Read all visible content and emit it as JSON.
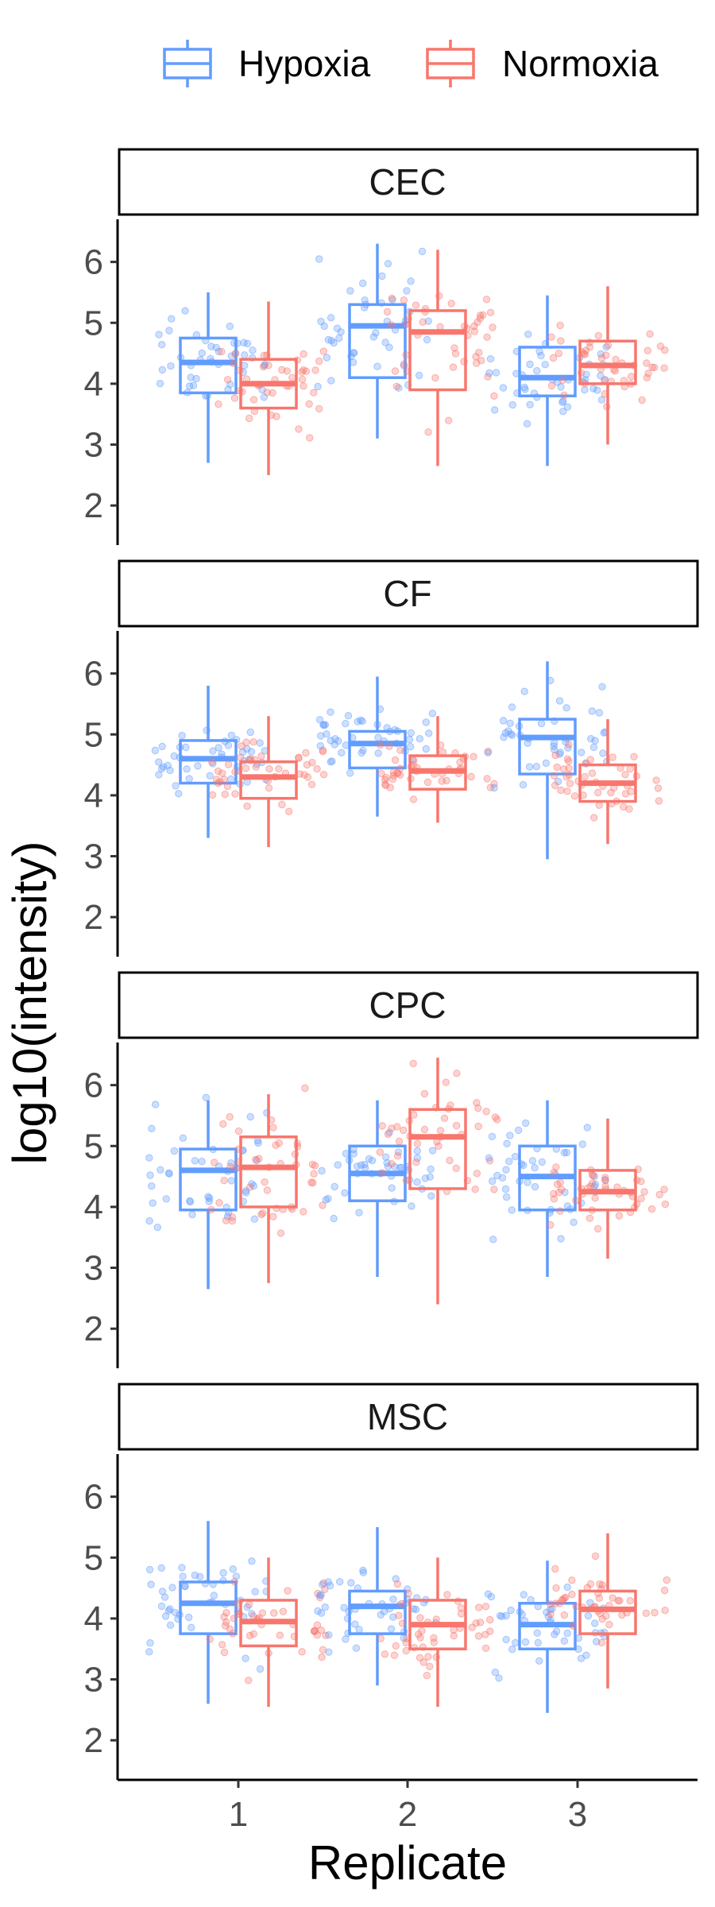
{
  "chart_data": {
    "type": "boxplot",
    "xlabel": "Replicate",
    "ylabel": "log10(intensity)",
    "x_categories": [
      "1",
      "2",
      "3"
    ],
    "y_ticks": [
      2,
      3,
      4,
      5,
      6
    ],
    "ylim": [
      1.35,
      6.7
    ],
    "legend": {
      "position": "top-right",
      "title": ""
    },
    "series": [
      {
        "name": "Hypoxia",
        "color": "#619CFF"
      },
      {
        "name": "Normoxia",
        "color": "#F8766D"
      }
    ],
    "panels": [
      {
        "label": "CEC",
        "boxes": [
          {
            "replicate": "1",
            "group": "Hypoxia",
            "whisker_low": 2.7,
            "q1": 3.85,
            "median": 4.35,
            "q3": 4.75,
            "whisker_high": 5.5
          },
          {
            "replicate": "1",
            "group": "Normoxia",
            "whisker_low": 2.5,
            "q1": 3.6,
            "median": 4.0,
            "q3": 4.4,
            "whisker_high": 5.35
          },
          {
            "replicate": "2",
            "group": "Hypoxia",
            "whisker_low": 3.1,
            "q1": 4.1,
            "median": 4.95,
            "q3": 5.3,
            "whisker_high": 6.3
          },
          {
            "replicate": "2",
            "group": "Normoxia",
            "whisker_low": 2.65,
            "q1": 3.9,
            "median": 4.85,
            "q3": 5.2,
            "whisker_high": 6.2
          },
          {
            "replicate": "3",
            "group": "Hypoxia",
            "whisker_low": 2.65,
            "q1": 3.8,
            "median": 4.1,
            "q3": 4.6,
            "whisker_high": 5.45
          },
          {
            "replicate": "3",
            "group": "Normoxia",
            "whisker_low": 3.0,
            "q1": 4.0,
            "median": 4.3,
            "q3": 4.7,
            "whisker_high": 5.6
          }
        ]
      },
      {
        "label": "CF",
        "boxes": [
          {
            "replicate": "1",
            "group": "Hypoxia",
            "whisker_low": 3.3,
            "q1": 4.2,
            "median": 4.6,
            "q3": 4.9,
            "whisker_high": 5.8
          },
          {
            "replicate": "1",
            "group": "Normoxia",
            "whisker_low": 3.15,
            "q1": 3.95,
            "median": 4.3,
            "q3": 4.55,
            "whisker_high": 5.3
          },
          {
            "replicate": "2",
            "group": "Hypoxia",
            "whisker_low": 3.65,
            "q1": 4.45,
            "median": 4.85,
            "q3": 5.05,
            "whisker_high": 5.95
          },
          {
            "replicate": "2",
            "group": "Normoxia",
            "whisker_low": 3.55,
            "q1": 4.1,
            "median": 4.4,
            "q3": 4.65,
            "whisker_high": 5.3
          },
          {
            "replicate": "3",
            "group": "Hypoxia",
            "whisker_low": 2.95,
            "q1": 4.35,
            "median": 4.95,
            "q3": 5.25,
            "whisker_high": 6.2
          },
          {
            "replicate": "3",
            "group": "Normoxia",
            "whisker_low": 3.2,
            "q1": 3.9,
            "median": 4.2,
            "q3": 4.5,
            "whisker_high": 5.25
          }
        ]
      },
      {
        "label": "CPC",
        "boxes": [
          {
            "replicate": "1",
            "group": "Hypoxia",
            "whisker_low": 2.65,
            "q1": 3.95,
            "median": 4.6,
            "q3": 4.95,
            "whisker_high": 5.75
          },
          {
            "replicate": "1",
            "group": "Normoxia",
            "whisker_low": 2.75,
            "q1": 4.0,
            "median": 4.65,
            "q3": 5.15,
            "whisker_high": 5.85
          },
          {
            "replicate": "2",
            "group": "Hypoxia",
            "whisker_low": 2.85,
            "q1": 4.1,
            "median": 4.55,
            "q3": 5.0,
            "whisker_high": 5.75
          },
          {
            "replicate": "2",
            "group": "Normoxia",
            "whisker_low": 2.4,
            "q1": 4.3,
            "median": 5.15,
            "q3": 5.6,
            "whisker_high": 6.45
          },
          {
            "replicate": "3",
            "group": "Hypoxia",
            "whisker_low": 2.85,
            "q1": 3.95,
            "median": 4.5,
            "q3": 5.0,
            "whisker_high": 5.75
          },
          {
            "replicate": "3",
            "group": "Normoxia",
            "whisker_low": 3.15,
            "q1": 3.95,
            "median": 4.25,
            "q3": 4.6,
            "whisker_high": 5.45
          }
        ]
      },
      {
        "label": "MSC",
        "boxes": [
          {
            "replicate": "1",
            "group": "Hypoxia",
            "whisker_low": 2.6,
            "q1": 3.75,
            "median": 4.25,
            "q3": 4.6,
            "whisker_high": 5.6
          },
          {
            "replicate": "1",
            "group": "Normoxia",
            "whisker_low": 2.55,
            "q1": 3.55,
            "median": 3.95,
            "q3": 4.3,
            "whisker_high": 5.0
          },
          {
            "replicate": "2",
            "group": "Hypoxia",
            "whisker_low": 2.9,
            "q1": 3.75,
            "median": 4.2,
            "q3": 4.45,
            "whisker_high": 5.5
          },
          {
            "replicate": "2",
            "group": "Normoxia",
            "whisker_low": 2.55,
            "q1": 3.5,
            "median": 3.9,
            "q3": 4.3,
            "whisker_high": 5.0
          },
          {
            "replicate": "3",
            "group": "Hypoxia",
            "whisker_low": 2.45,
            "q1": 3.5,
            "median": 3.9,
            "q3": 4.25,
            "whisker_high": 4.95
          },
          {
            "replicate": "3",
            "group": "Normoxia",
            "whisker_low": 2.85,
            "q1": 3.75,
            "median": 4.15,
            "q3": 4.45,
            "whisker_high": 5.4
          }
        ]
      }
    ]
  }
}
